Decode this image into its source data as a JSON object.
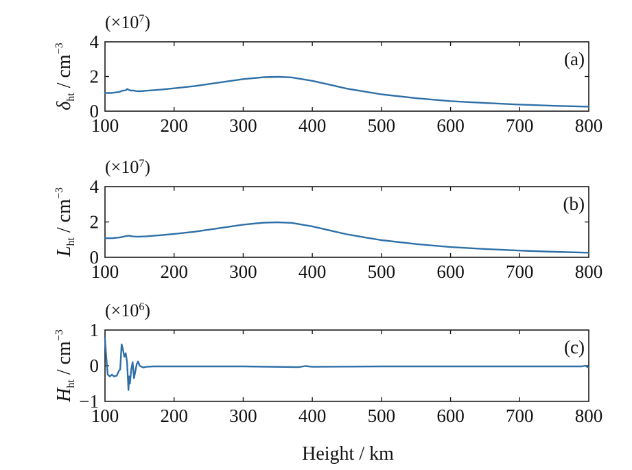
{
  "colors": {
    "series": "#2e6fa8",
    "axes": "#1a1a1a"
  },
  "xlabel": "Height / km",
  "chart_data": [
    {
      "type": "line",
      "panel": "(a)",
      "scale": {
        "prefix": "(×10",
        "exp": "7",
        "suffix": ")"
      },
      "ylabel": {
        "symbol": "δ",
        "sub": "ht",
        "unit": " / cm",
        "sup": "−3"
      },
      "xlim": [
        100,
        800
      ],
      "ylim": [
        0,
        4
      ],
      "xticks": [
        "100",
        "200",
        "300",
        "400",
        "500",
        "600",
        "700",
        "800"
      ],
      "yticks": [
        "0",
        "2",
        "4"
      ],
      "series": [
        {
          "x": [
            100,
            110,
            115,
            120,
            125,
            130,
            132,
            135,
            138,
            140,
            145,
            150,
            160,
            180,
            200,
            230,
            260,
            300,
            330,
            350,
            370,
            400,
            430,
            450,
            480,
            500,
            550,
            600,
            650,
            700,
            750,
            800
          ],
          "y": [
            1.05,
            1.05,
            1.08,
            1.1,
            1.18,
            1.2,
            1.28,
            1.22,
            1.18,
            1.2,
            1.16,
            1.15,
            1.18,
            1.24,
            1.32,
            1.45,
            1.62,
            1.85,
            1.96,
            1.98,
            1.95,
            1.75,
            1.48,
            1.3,
            1.1,
            0.97,
            0.75,
            0.58,
            0.47,
            0.38,
            0.31,
            0.26
          ]
        }
      ]
    },
    {
      "type": "line",
      "panel": "(b)",
      "scale": {
        "prefix": "(×10",
        "exp": "7",
        "suffix": ")"
      },
      "ylabel": {
        "symbol": "L",
        "sub": "ht",
        "unit": " / cm",
        "sup": "−3"
      },
      "xlim": [
        100,
        800
      ],
      "ylim": [
        0,
        4
      ],
      "xticks": [
        "100",
        "200",
        "300",
        "400",
        "500",
        "600",
        "700",
        "800"
      ],
      "yticks": [
        "0",
        "2",
        "4"
      ],
      "series": [
        {
          "x": [
            100,
            110,
            115,
            120,
            125,
            130,
            135,
            140,
            145,
            150,
            160,
            180,
            200,
            230,
            260,
            300,
            330,
            350,
            370,
            400,
            430,
            450,
            480,
            500,
            550,
            600,
            650,
            700,
            750,
            800
          ],
          "y": [
            1.08,
            1.08,
            1.1,
            1.12,
            1.15,
            1.2,
            1.22,
            1.18,
            1.17,
            1.17,
            1.19,
            1.25,
            1.32,
            1.45,
            1.62,
            1.85,
            1.96,
            1.98,
            1.95,
            1.75,
            1.48,
            1.3,
            1.1,
            0.97,
            0.75,
            0.58,
            0.47,
            0.38,
            0.31,
            0.26
          ]
        }
      ]
    },
    {
      "type": "line",
      "panel": "(c)",
      "scale": {
        "prefix": "(×10",
        "exp": "6",
        "suffix": ")"
      },
      "ylabel": {
        "symbol": "H",
        "sub": "ht",
        "unit": " / cm",
        "sup": "−3"
      },
      "xlim": [
        100,
        800
      ],
      "ylim": [
        -1,
        1
      ],
      "xticks": [
        "100",
        "200",
        "300",
        "400",
        "500",
        "600",
        "700",
        "800"
      ],
      "yticks": [
        "−1",
        "0",
        "1"
      ],
      "series": [
        {
          "x": [
            100,
            102,
            104,
            107,
            110,
            113,
            117,
            120,
            122,
            124,
            126,
            128,
            130,
            132,
            134,
            135,
            136,
            138,
            140,
            142,
            144,
            146,
            148,
            150,
            155,
            160,
            170,
            200,
            300,
            380,
            390,
            400,
            500,
            600,
            700,
            790,
            795,
            800
          ],
          "y": [
            0.75,
            0.2,
            -0.25,
            -0.3,
            -0.25,
            -0.3,
            -0.28,
            -0.15,
            -0.1,
            0.6,
            0.45,
            0.25,
            0.35,
            0.1,
            -0.68,
            -0.3,
            -0.5,
            -0.1,
            0.1,
            -0.35,
            -0.15,
            0.05,
            0.12,
            0.0,
            -0.05,
            -0.03,
            -0.02,
            -0.02,
            -0.02,
            -0.04,
            -0.01,
            -0.03,
            -0.02,
            -0.02,
            -0.02,
            -0.02,
            0.0,
            -0.06
          ]
        }
      ]
    }
  ]
}
